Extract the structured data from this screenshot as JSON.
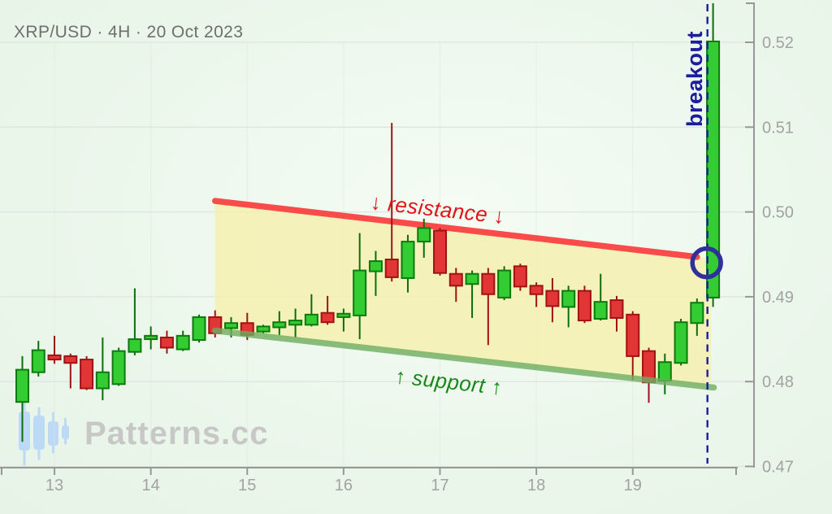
{
  "watermark": {
    "text": "Patterns.cc"
  },
  "chart_data": {
    "type": "candlestick",
    "title": "XRP/USD · 4H · 20 Oct 2023",
    "symbol": "XRP/USD",
    "timeframe": "4H",
    "pattern_date": "20 Oct 2023",
    "y_axis": {
      "tick_labels": [
        "0.47",
        "0.48",
        "0.49",
        "0.50",
        "0.51",
        "0.52"
      ],
      "range": [
        0.47,
        0.525
      ],
      "side": "right"
    },
    "x_axis": {
      "tick_labels": [
        "13",
        "14",
        "15",
        "16",
        "17",
        "18",
        "19"
      ],
      "tick_candle_indices": [
        2,
        8,
        14,
        20,
        26,
        32,
        38
      ]
    },
    "candles": [
      {
        "o": 0.4776,
        "h": 0.483,
        "l": 0.4729,
        "c": 0.4814
      },
      {
        "o": 0.4811,
        "h": 0.4848,
        "l": 0.4806,
        "c": 0.4837
      },
      {
        "o": 0.4831,
        "h": 0.4854,
        "l": 0.4821,
        "c": 0.4826
      },
      {
        "o": 0.483,
        "h": 0.4833,
        "l": 0.4792,
        "c": 0.4822
      },
      {
        "o": 0.4826,
        "h": 0.483,
        "l": 0.479,
        "c": 0.4792
      },
      {
        "o": 0.4792,
        "h": 0.4852,
        "l": 0.4778,
        "c": 0.4811
      },
      {
        "o": 0.4797,
        "h": 0.484,
        "l": 0.4795,
        "c": 0.4836
      },
      {
        "o": 0.4835,
        "h": 0.491,
        "l": 0.4831,
        "c": 0.485
      },
      {
        "o": 0.485,
        "h": 0.4865,
        "l": 0.4838,
        "c": 0.4854
      },
      {
        "o": 0.4852,
        "h": 0.486,
        "l": 0.4833,
        "c": 0.484
      },
      {
        "o": 0.4838,
        "h": 0.486,
        "l": 0.4836,
        "c": 0.4854
      },
      {
        "o": 0.4849,
        "h": 0.4879,
        "l": 0.4846,
        "c": 0.4876
      },
      {
        "o": 0.4876,
        "h": 0.4884,
        "l": 0.4852,
        "c": 0.4857
      },
      {
        "o": 0.4863,
        "h": 0.4876,
        "l": 0.4852,
        "c": 0.4869
      },
      {
        "o": 0.4869,
        "h": 0.4881,
        "l": 0.4849,
        "c": 0.4855
      },
      {
        "o": 0.4859,
        "h": 0.4867,
        "l": 0.4857,
        "c": 0.4865
      },
      {
        "o": 0.4864,
        "h": 0.4883,
        "l": 0.4855,
        "c": 0.487
      },
      {
        "o": 0.4867,
        "h": 0.4886,
        "l": 0.4852,
        "c": 0.4872
      },
      {
        "o": 0.4867,
        "h": 0.4903,
        "l": 0.4865,
        "c": 0.4879
      },
      {
        "o": 0.4881,
        "h": 0.4901,
        "l": 0.4867,
        "c": 0.487
      },
      {
        "o": 0.4876,
        "h": 0.4886,
        "l": 0.4859,
        "c": 0.488
      },
      {
        "o": 0.4878,
        "h": 0.4975,
        "l": 0.485,
        "c": 0.4931
      },
      {
        "o": 0.493,
        "h": 0.4954,
        "l": 0.4901,
        "c": 0.4942
      },
      {
        "o": 0.4944,
        "h": 0.5105,
        "l": 0.4918,
        "c": 0.4923
      },
      {
        "o": 0.4922,
        "h": 0.4973,
        "l": 0.4905,
        "c": 0.4965
      },
      {
        "o": 0.4965,
        "h": 0.4992,
        "l": 0.4946,
        "c": 0.4981
      },
      {
        "o": 0.4978,
        "h": 0.4981,
        "l": 0.4925,
        "c": 0.4928
      },
      {
        "o": 0.4927,
        "h": 0.4934,
        "l": 0.4894,
        "c": 0.4913
      },
      {
        "o": 0.4915,
        "h": 0.4931,
        "l": 0.4875,
        "c": 0.4927
      },
      {
        "o": 0.4927,
        "h": 0.4934,
        "l": 0.4843,
        "c": 0.4903
      },
      {
        "o": 0.4899,
        "h": 0.4936,
        "l": 0.4896,
        "c": 0.4931
      },
      {
        "o": 0.4936,
        "h": 0.4939,
        "l": 0.4907,
        "c": 0.4912
      },
      {
        "o": 0.4913,
        "h": 0.4917,
        "l": 0.4888,
        "c": 0.4903
      },
      {
        "o": 0.4907,
        "h": 0.4922,
        "l": 0.487,
        "c": 0.4889
      },
      {
        "o": 0.4888,
        "h": 0.4913,
        "l": 0.4864,
        "c": 0.4907
      },
      {
        "o": 0.4907,
        "h": 0.4913,
        "l": 0.4869,
        "c": 0.4872
      },
      {
        "o": 0.4874,
        "h": 0.4927,
        "l": 0.4872,
        "c": 0.4894
      },
      {
        "o": 0.4896,
        "h": 0.4901,
        "l": 0.4859,
        "c": 0.4875
      },
      {
        "o": 0.4879,
        "h": 0.4883,
        "l": 0.4802,
        "c": 0.483
      },
      {
        "o": 0.4836,
        "h": 0.484,
        "l": 0.4775,
        "c": 0.4799
      },
      {
        "o": 0.4801,
        "h": 0.4833,
        "l": 0.4785,
        "c": 0.4823
      },
      {
        "o": 0.4822,
        "h": 0.4874,
        "l": 0.4819,
        "c": 0.487
      },
      {
        "o": 0.4869,
        "h": 0.4898,
        "l": 0.4854,
        "c": 0.4893
      },
      {
        "o": 0.4899,
        "h": 0.5246,
        "l": 0.4888,
        "c": 0.5201
      }
    ],
    "annotations": {
      "resistance": {
        "label": "↓ resistance ↓",
        "text_color": "#e01414",
        "line_color": "#fa4b4b",
        "from": {
          "index": 12,
          "price": 0.5013
        },
        "to": {
          "index": 42,
          "price": 0.4947
        }
      },
      "support": {
        "label": "↑ support ↑",
        "text_color": "#1a871a",
        "line_color": "#6fae62",
        "from": {
          "index": 12,
          "price": 0.486
        },
        "to": {
          "index": 43.05,
          "price": 0.4793
        }
      },
      "channel_fill_color": "#f5efb2",
      "breakout": {
        "label": "breakout",
        "color": "#1c1c9e",
        "candle_index": 43,
        "dash_line_index": 42.65,
        "circle": {
          "index": 42.6,
          "price": 0.494,
          "color": "#30309c"
        }
      }
    },
    "colors": {
      "up_fill": "#33cc33",
      "up_stroke": "#0d7a0d",
      "up_wick": "#0a6e0a",
      "down_fill": "#e23535",
      "down_stroke": "#9e1414",
      "down_wick": "#9e1414",
      "grid": "#dce6dc",
      "axis": "#979797",
      "tick_text": "#a2a2a2",
      "title_text": "#6e6e6e",
      "background": "#ecf7ec"
    }
  }
}
